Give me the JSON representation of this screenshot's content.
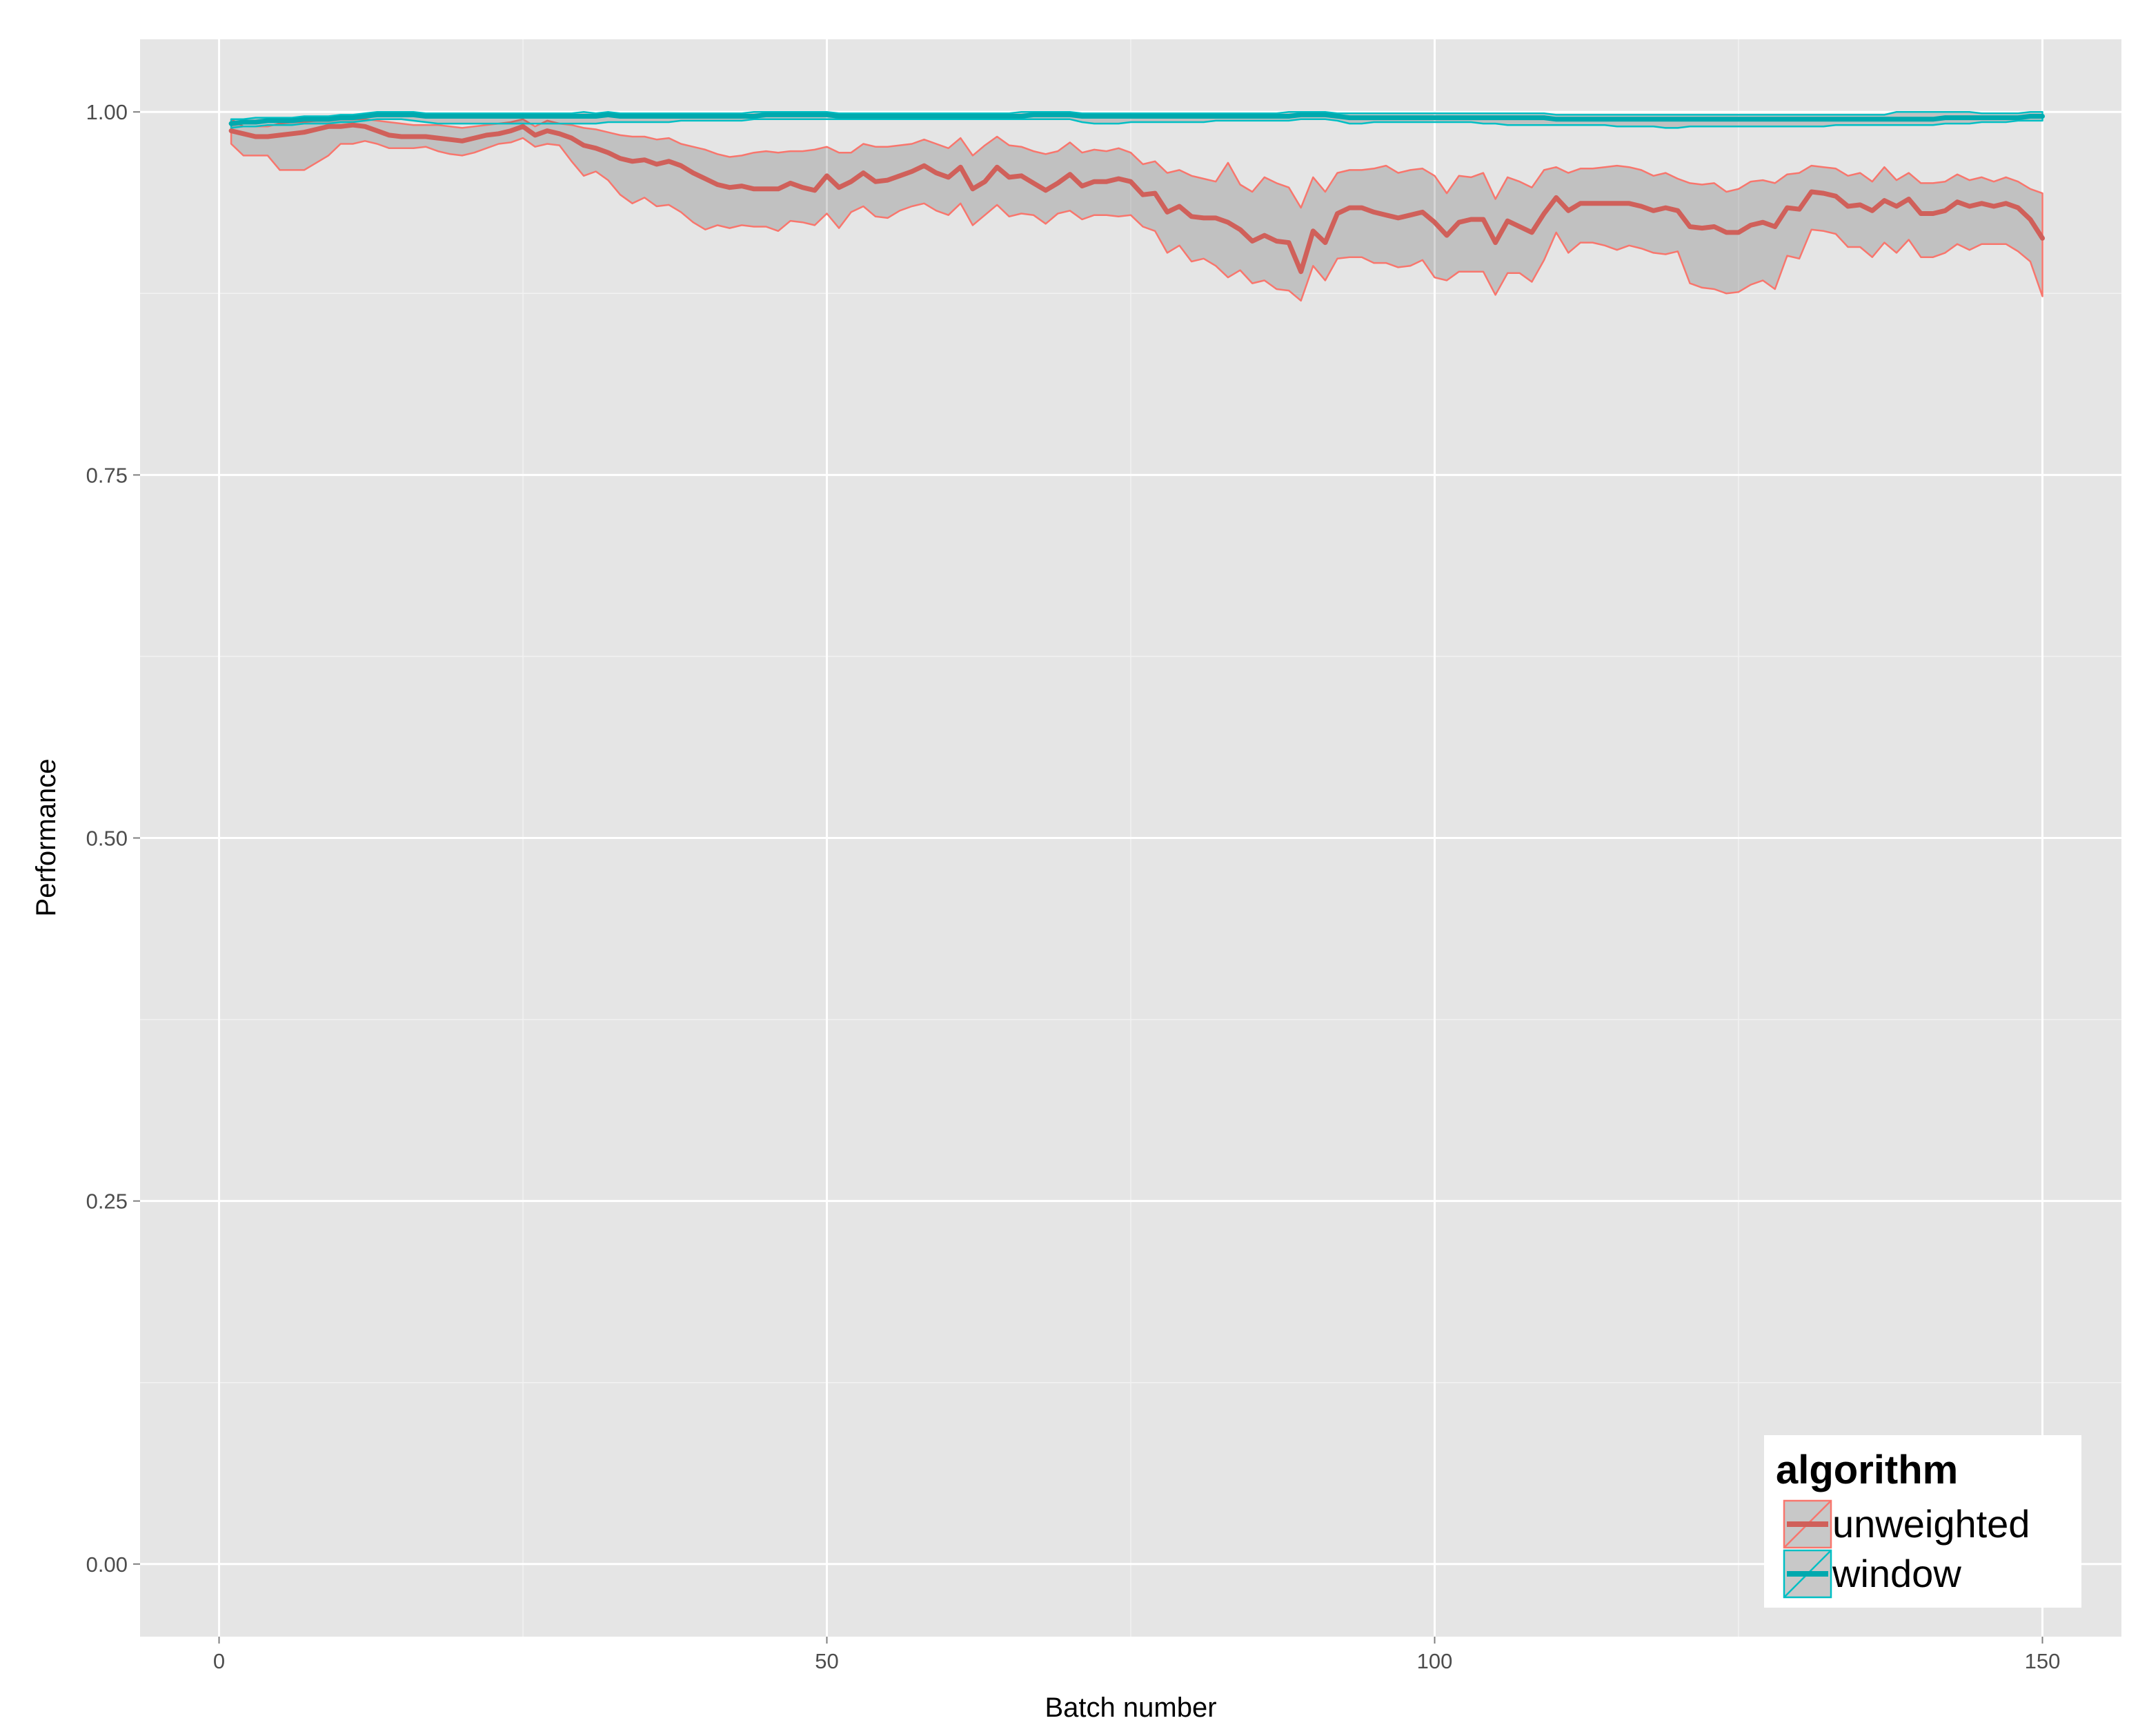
{
  "chart_data": {
    "type": "line",
    "xlabel": "Batch number",
    "ylabel": "Performance",
    "xlim": [
      -6.5,
      156.5
    ],
    "ylim": [
      -0.05,
      1.05
    ],
    "x_ticks": [
      0,
      50,
      100,
      150
    ],
    "y_ticks": [
      0.0,
      0.25,
      0.5,
      0.75,
      1.0
    ],
    "x_tick_labels": [
      "0",
      "50",
      "100",
      "150"
    ],
    "y_tick_labels": [
      "0.00",
      "0.25",
      "0.50",
      "0.75",
      "1.00"
    ],
    "grid": true,
    "background": "#e5e5e5",
    "legend": {
      "title": "algorithm",
      "position": "bottom-right"
    },
    "x_start": 1,
    "x_step": 1,
    "series": [
      {
        "name": "unweighted",
        "color": "#f8766d",
        "line_color": "#d0605a",
        "mean": [
          0.987,
          0.985,
          0.983,
          0.983,
          0.984,
          0.985,
          0.986,
          0.988,
          0.99,
          0.99,
          0.991,
          0.99,
          0.987,
          0.984,
          0.983,
          0.983,
          0.983,
          0.982,
          0.981,
          0.98,
          0.982,
          0.984,
          0.985,
          0.987,
          0.99,
          0.984,
          0.987,
          0.985,
          0.982,
          0.977,
          0.975,
          0.972,
          0.968,
          0.966,
          0.967,
          0.964,
          0.966,
          0.963,
          0.958,
          0.954,
          0.95,
          0.948,
          0.949,
          0.947,
          0.947,
          0.947,
          0.951,
          0.948,
          0.946,
          0.956,
          0.948,
          0.952,
          0.958,
          0.952,
          0.953,
          0.956,
          0.959,
          0.963,
          0.958,
          0.955,
          0.962,
          0.947,
          0.952,
          0.962,
          0.955,
          0.956,
          0.951,
          0.946,
          0.951,
          0.957,
          0.949,
          0.952,
          0.952,
          0.954,
          0.952,
          0.943,
          0.944,
          0.931,
          0.935,
          0.928,
          0.927,
          0.927,
          0.924,
          0.919,
          0.911,
          0.915,
          0.911,
          0.91,
          0.89,
          0.918,
          0.91,
          0.93,
          0.934,
          0.934,
          0.931,
          0.929,
          0.927,
          0.929,
          0.931,
          0.924,
          0.915,
          0.924,
          0.926,
          0.926,
          0.91,
          0.925,
          0.921,
          0.917,
          0.93,
          0.941,
          0.932,
          0.937,
          0.937,
          0.937,
          0.937,
          0.937,
          0.935,
          0.932,
          0.934,
          0.932,
          0.921,
          0.92,
          0.921,
          0.917,
          0.917,
          0.922,
          0.924,
          0.921,
          0.934,
          0.933,
          0.945,
          0.944,
          0.942,
          0.935,
          0.936,
          0.932,
          0.939,
          0.935,
          0.94,
          0.93,
          0.93,
          0.932,
          0.938,
          0.935,
          0.937,
          0.935,
          0.937,
          0.934,
          0.926,
          0.913
        ],
        "upper": [
          0.995,
          0.99,
          0.99,
          0.99,
          0.992,
          0.993,
          0.993,
          0.994,
          0.996,
          0.995,
          0.995,
          0.995,
          0.994,
          0.993,
          0.992,
          0.991,
          0.991,
          0.991,
          0.99,
          0.989,
          0.99,
          0.991,
          0.992,
          0.993,
          0.995,
          0.99,
          0.994,
          0.992,
          0.991,
          0.989,
          0.988,
          0.986,
          0.984,
          0.983,
          0.983,
          0.981,
          0.982,
          0.978,
          0.976,
          0.974,
          0.971,
          0.969,
          0.97,
          0.972,
          0.973,
          0.972,
          0.973,
          0.973,
          0.974,
          0.976,
          0.972,
          0.972,
          0.978,
          0.976,
          0.976,
          0.977,
          0.978,
          0.981,
          0.978,
          0.975,
          0.982,
          0.97,
          0.977,
          0.983,
          0.977,
          0.976,
          0.973,
          0.971,
          0.973,
          0.979,
          0.972,
          0.974,
          0.973,
          0.975,
          0.972,
          0.964,
          0.966,
          0.958,
          0.96,
          0.956,
          0.954,
          0.952,
          0.965,
          0.95,
          0.945,
          0.955,
          0.951,
          0.948,
          0.934,
          0.955,
          0.945,
          0.958,
          0.96,
          0.96,
          0.961,
          0.963,
          0.958,
          0.96,
          0.961,
          0.956,
          0.944,
          0.956,
          0.955,
          0.958,
          0.94,
          0.955,
          0.952,
          0.948,
          0.96,
          0.962,
          0.958,
          0.961,
          0.961,
          0.962,
          0.963,
          0.962,
          0.96,
          0.956,
          0.958,
          0.954,
          0.951,
          0.95,
          0.951,
          0.945,
          0.947,
          0.952,
          0.953,
          0.951,
          0.957,
          0.958,
          0.963,
          0.962,
          0.961,
          0.956,
          0.958,
          0.952,
          0.962,
          0.953,
          0.958,
          0.951,
          0.951,
          0.952,
          0.957,
          0.953,
          0.955,
          0.952,
          0.955,
          0.952,
          0.947,
          0.944
        ],
        "lower": [
          0.978,
          0.97,
          0.97,
          0.97,
          0.96,
          0.96,
          0.96,
          0.965,
          0.97,
          0.978,
          0.978,
          0.98,
          0.978,
          0.975,
          0.975,
          0.975,
          0.976,
          0.973,
          0.971,
          0.97,
          0.972,
          0.975,
          0.978,
          0.979,
          0.982,
          0.976,
          0.978,
          0.977,
          0.966,
          0.956,
          0.959,
          0.953,
          0.943,
          0.937,
          0.941,
          0.935,
          0.936,
          0.931,
          0.924,
          0.919,
          0.922,
          0.92,
          0.922,
          0.921,
          0.921,
          0.918,
          0.925,
          0.924,
          0.922,
          0.93,
          0.92,
          0.931,
          0.935,
          0.928,
          0.927,
          0.932,
          0.935,
          0.937,
          0.932,
          0.929,
          0.937,
          0.922,
          0.929,
          0.936,
          0.928,
          0.93,
          0.929,
          0.923,
          0.93,
          0.932,
          0.926,
          0.929,
          0.929,
          0.928,
          0.929,
          0.921,
          0.918,
          0.903,
          0.908,
          0.897,
          0.899,
          0.894,
          0.886,
          0.891,
          0.882,
          0.884,
          0.878,
          0.877,
          0.87,
          0.894,
          0.884,
          0.899,
          0.9,
          0.9,
          0.896,
          0.896,
          0.893,
          0.894,
          0.898,
          0.886,
          0.884,
          0.89,
          0.89,
          0.89,
          0.874,
          0.889,
          0.889,
          0.883,
          0.898,
          0.917,
          0.903,
          0.91,
          0.91,
          0.908,
          0.905,
          0.908,
          0.906,
          0.903,
          0.902,
          0.904,
          0.882,
          0.879,
          0.878,
          0.875,
          0.876,
          0.881,
          0.884,
          0.878,
          0.901,
          0.899,
          0.919,
          0.918,
          0.916,
          0.907,
          0.907,
          0.9,
          0.91,
          0.903,
          0.912,
          0.9,
          0.9,
          0.903,
          0.909,
          0.905,
          0.909,
          0.909,
          0.909,
          0.904,
          0.897,
          0.873
        ]
      },
      {
        "name": "window",
        "color": "#00bfc4",
        "line_color": "#00a9ae",
        "mean": [
          0.992,
          0.993,
          0.993,
          0.994,
          0.994,
          0.994,
          0.995,
          0.995,
          0.995,
          0.996,
          0.996,
          0.997,
          0.998,
          0.998,
          0.998,
          0.998,
          0.997,
          0.997,
          0.997,
          0.997,
          0.997,
          0.997,
          0.997,
          0.997,
          0.997,
          0.997,
          0.997,
          0.997,
          0.997,
          0.997,
          0.997,
          0.998,
          0.997,
          0.997,
          0.997,
          0.997,
          0.997,
          0.997,
          0.997,
          0.997,
          0.997,
          0.997,
          0.997,
          0.997,
          0.998,
          0.998,
          0.998,
          0.998,
          0.998,
          0.998,
          0.997,
          0.997,
          0.997,
          0.997,
          0.997,
          0.997,
          0.997,
          0.997,
          0.997,
          0.997,
          0.997,
          0.997,
          0.997,
          0.997,
          0.997,
          0.997,
          0.998,
          0.998,
          0.998,
          0.998,
          0.997,
          0.997,
          0.997,
          0.997,
          0.997,
          0.997,
          0.997,
          0.997,
          0.997,
          0.997,
          0.997,
          0.997,
          0.997,
          0.997,
          0.997,
          0.997,
          0.997,
          0.997,
          0.998,
          0.998,
          0.998,
          0.997,
          0.996,
          0.996,
          0.996,
          0.996,
          0.996,
          0.996,
          0.996,
          0.996,
          0.996,
          0.996,
          0.996,
          0.996,
          0.996,
          0.996,
          0.996,
          0.996,
          0.996,
          0.995,
          0.995,
          0.995,
          0.995,
          0.995,
          0.995,
          0.995,
          0.995,
          0.995,
          0.995,
          0.995,
          0.995,
          0.995,
          0.995,
          0.995,
          0.995,
          0.995,
          0.995,
          0.995,
          0.995,
          0.995,
          0.995,
          0.995,
          0.995,
          0.995,
          0.995,
          0.995,
          0.995,
          0.995,
          0.995,
          0.995,
          0.995,
          0.996,
          0.996,
          0.996,
          0.996,
          0.996,
          0.996,
          0.996,
          0.997,
          0.997
        ],
        "upper": [
          0.995,
          0.995,
          0.996,
          0.996,
          0.996,
          0.996,
          0.997,
          0.997,
          0.997,
          0.998,
          0.998,
          0.999,
          1.0,
          1.0,
          1.0,
          1.0,
          0.999,
          0.999,
          0.999,
          0.999,
          0.999,
          0.999,
          0.999,
          0.999,
          0.999,
          0.999,
          0.999,
          0.999,
          0.999,
          1.0,
          0.999,
          1.0,
          0.999,
          0.999,
          0.999,
          0.999,
          0.999,
          0.999,
          0.999,
          0.999,
          0.999,
          0.999,
          0.999,
          1.0,
          1.0,
          1.0,
          1.0,
          1.0,
          1.0,
          1.0,
          0.999,
          0.999,
          0.999,
          0.999,
          0.999,
          0.999,
          0.999,
          0.999,
          0.999,
          0.999,
          0.999,
          0.999,
          0.999,
          0.999,
          0.999,
          1.0,
          1.0,
          1.0,
          1.0,
          1.0,
          0.999,
          0.999,
          0.999,
          0.999,
          0.999,
          0.999,
          0.999,
          0.999,
          0.999,
          0.999,
          0.999,
          0.999,
          0.999,
          0.999,
          0.999,
          0.999,
          0.999,
          1.0,
          1.0,
          1.0,
          1.0,
          0.999,
          0.999,
          0.999,
          0.999,
          0.999,
          0.999,
          0.999,
          0.999,
          0.999,
          0.999,
          0.999,
          0.999,
          0.999,
          0.999,
          0.999,
          0.999,
          0.999,
          0.999,
          0.998,
          0.998,
          0.998,
          0.998,
          0.998,
          0.998,
          0.998,
          0.998,
          0.998,
          0.998,
          0.998,
          0.998,
          0.998,
          0.998,
          0.998,
          0.998,
          0.998,
          0.998,
          0.998,
          0.998,
          0.998,
          0.998,
          0.998,
          0.998,
          0.998,
          0.998,
          0.998,
          0.998,
          1.0,
          1.0,
          1.0,
          1.0,
          1.0,
          1.0,
          1.0,
          0.999,
          0.999,
          0.999,
          0.999,
          1.0,
          1.0
        ],
        "lower": [
          0.989,
          0.99,
          0.99,
          0.991,
          0.991,
          0.991,
          0.992,
          0.992,
          0.992,
          0.993,
          0.993,
          0.994,
          0.995,
          0.995,
          0.995,
          0.994,
          0.993,
          0.992,
          0.992,
          0.992,
          0.992,
          0.992,
          0.992,
          0.992,
          0.992,
          0.992,
          0.992,
          0.992,
          0.992,
          0.992,
          0.992,
          0.993,
          0.993,
          0.993,
          0.993,
          0.993,
          0.993,
          0.994,
          0.994,
          0.994,
          0.994,
          0.994,
          0.994,
          0.995,
          0.995,
          0.995,
          0.995,
          0.995,
          0.995,
          0.995,
          0.995,
          0.995,
          0.995,
          0.995,
          0.995,
          0.995,
          0.995,
          0.995,
          0.995,
          0.995,
          0.995,
          0.995,
          0.995,
          0.995,
          0.995,
          0.995,
          0.995,
          0.995,
          0.995,
          0.995,
          0.993,
          0.992,
          0.992,
          0.992,
          0.993,
          0.993,
          0.993,
          0.993,
          0.993,
          0.993,
          0.993,
          0.994,
          0.994,
          0.994,
          0.994,
          0.994,
          0.994,
          0.994,
          0.995,
          0.995,
          0.995,
          0.994,
          0.992,
          0.992,
          0.993,
          0.993,
          0.993,
          0.993,
          0.993,
          0.993,
          0.993,
          0.993,
          0.993,
          0.992,
          0.992,
          0.991,
          0.991,
          0.991,
          0.991,
          0.991,
          0.991,
          0.991,
          0.991,
          0.991,
          0.99,
          0.99,
          0.99,
          0.99,
          0.989,
          0.989,
          0.99,
          0.99,
          0.99,
          0.99,
          0.99,
          0.99,
          0.99,
          0.99,
          0.99,
          0.99,
          0.99,
          0.99,
          0.991,
          0.991,
          0.991,
          0.991,
          0.991,
          0.991,
          0.991,
          0.991,
          0.991,
          0.992,
          0.992,
          0.992,
          0.993,
          0.993,
          0.993,
          0.994,
          0.994,
          0.994
        ]
      }
    ]
  }
}
